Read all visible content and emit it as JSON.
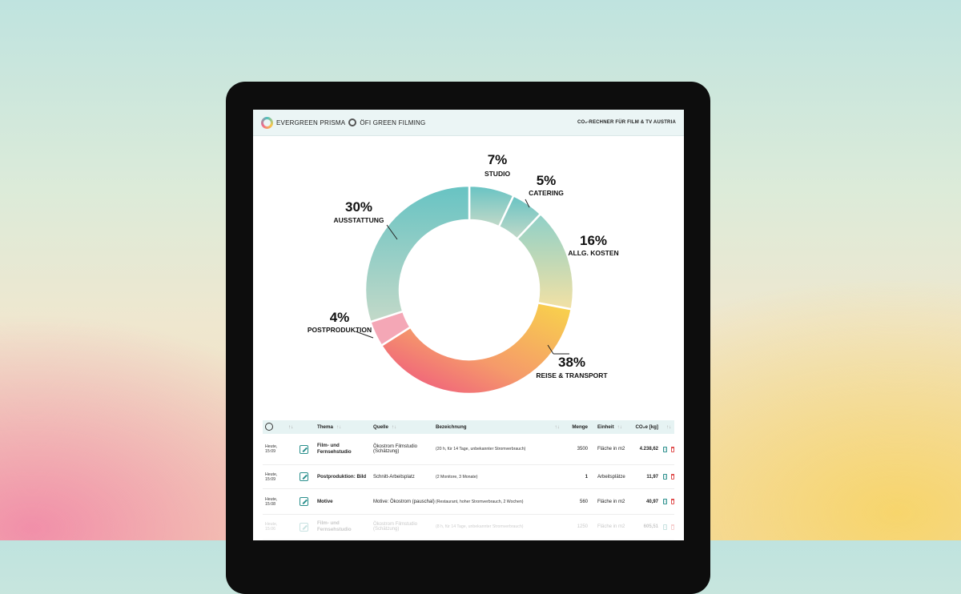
{
  "header": {
    "brand1": "EVERGREEN PRISMA",
    "brand2": "ÖFI GREEN FILMING",
    "tagline": "CO₂-RECHNER FÜR FILM & TV AUSTRIA"
  },
  "chart_data": {
    "type": "pie",
    "donut": true,
    "slices": [
      {
        "label": "STUDIO",
        "value": 7,
        "pct_label": "7%"
      },
      {
        "label": "CATERING",
        "value": 5,
        "pct_label": "5%"
      },
      {
        "label": "ALLG. KOSTEN",
        "value": 16,
        "pct_label": "16%"
      },
      {
        "label": "REISE & TRANSPORT",
        "value": 38,
        "pct_label": "38%"
      },
      {
        "label": "POSTPRODUKTION",
        "value": 4,
        "pct_label": "4%"
      },
      {
        "label": "AUSSTATTUNG",
        "value": 30,
        "pct_label": "30%"
      }
    ]
  },
  "table": {
    "headers": {
      "thema": "Thema",
      "quelle": "Quelle",
      "bezeichnung": "Bezeichnung",
      "menge": "Menge",
      "einheit": "Einheit",
      "co2": "CO₂e [kg]"
    },
    "rows": [
      {
        "time1": "Heute,",
        "time2": "15:09",
        "thema": "Film- und Fernsehstudio",
        "quelle": "Ökostrom Filmstudio (Schätzung)",
        "bezeichnung": "(20 h, für 14 Tage, unbekannter Stromverbrauch)",
        "menge": "3500",
        "einheit": "Fläche in m2",
        "co2": "4.238,62"
      },
      {
        "time1": "Heute,",
        "time2": "15:09",
        "thema": "Postproduktion: Bild",
        "quelle": "Schnitt-Arbeitsplatz",
        "bezeichnung": "(2 Monitore, 3 Monate)",
        "menge": "1",
        "einheit": "Arbeitsplätze",
        "co2": "11,97"
      },
      {
        "time1": "Heute,",
        "time2": "15:08",
        "thema": "Motive",
        "quelle": "Motive: Ökostrom (pauschal)",
        "bezeichnung": "(Restaurant, hoher Stromverbrauch, 2 Wochen)",
        "menge": "560",
        "einheit": "Fläche in m2",
        "co2": "40,97"
      },
      {
        "time1": "Heute,",
        "time2": "15:06",
        "thema": "Film- und Fernsehstudio",
        "quelle": "Ökostrom Filmstudio (Schätzung)",
        "bezeichnung": "(8 h, für 14 Tage, unbekannter Stromverbrauch)",
        "menge": "1250",
        "einheit": "Fläche in m2",
        "co2": "605,51"
      }
    ]
  }
}
